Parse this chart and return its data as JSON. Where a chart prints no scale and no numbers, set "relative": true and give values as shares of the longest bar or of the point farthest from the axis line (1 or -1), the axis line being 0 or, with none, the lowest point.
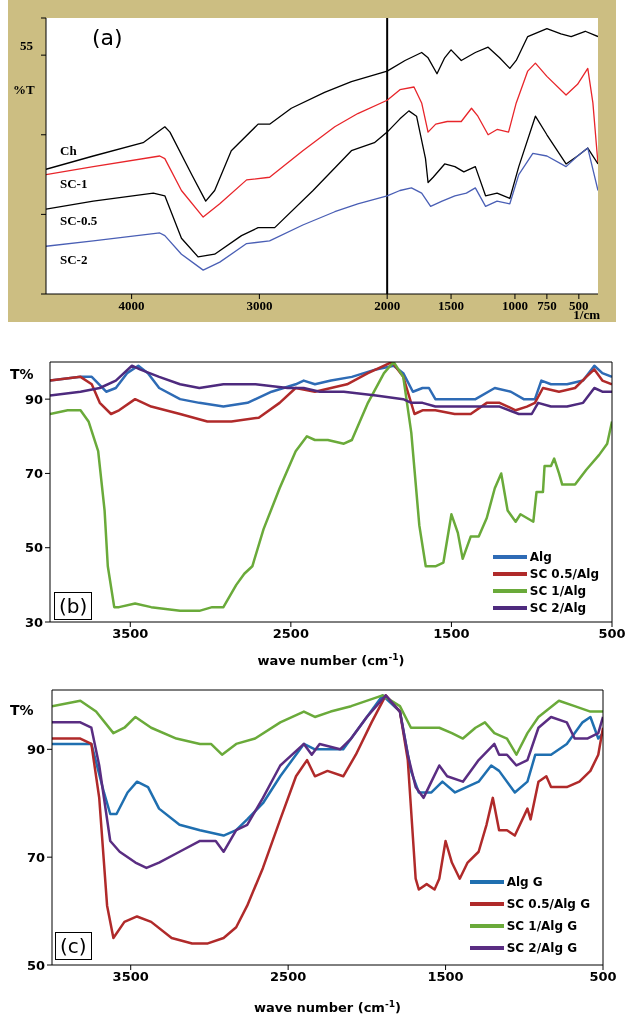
{
  "chart_data": [
    {
      "type": "line",
      "relative": true,
      "ylabel": "%T",
      "xlabel": "1/cm",
      "annotations": [
        "(a)",
        "55"
      ],
      "xlim": [
        4670,
        350
      ],
      "xticks": [
        4000,
        3000,
        2000,
        1500,
        1000,
        750,
        500
      ],
      "legend": "left",
      "grid": false,
      "ref_lines": [
        {
          "axis": "x",
          "value": 2000,
          "color": "#000000"
        }
      ],
      "series": [
        {
          "name": "Ch",
          "color": "#000000",
          "x": [
            4670,
            4300,
            3910,
            3740,
            3700,
            3530,
            3420,
            3350,
            3220,
            3010,
            2920,
            2750,
            2490,
            2280,
            2000,
            1860,
            1730,
            1680,
            1610,
            1550,
            1500,
            1420,
            1310,
            1210,
            1120,
            1040,
            990,
            900,
            750,
            640,
            560,
            450,
            350
          ],
          "values": [
            0.47,
            0.52,
            0.57,
            0.63,
            0.61,
            0.45,
            0.35,
            0.39,
            0.54,
            0.64,
            0.64,
            0.7,
            0.76,
            0.8,
            0.84,
            0.88,
            0.91,
            0.89,
            0.83,
            0.89,
            0.92,
            0.88,
            0.91,
            0.93,
            0.89,
            0.85,
            0.88,
            0.97,
            1,
            0.98,
            0.97,
            0.99,
            0.97
          ]
        },
        {
          "name": "SC-1",
          "color": "#e8252a",
          "x": [
            4670,
            4300,
            3780,
            3740,
            3610,
            3440,
            3310,
            3100,
            2920,
            2660,
            2410,
            2230,
            2000,
            1900,
            1790,
            1730,
            1680,
            1620,
            1530,
            1420,
            1340,
            1290,
            1210,
            1140,
            1050,
            990,
            900,
            840,
            750,
            600,
            510,
            430,
            390,
            350
          ],
          "values": [
            0.45,
            0.48,
            0.52,
            0.51,
            0.39,
            0.29,
            0.34,
            0.43,
            0.44,
            0.54,
            0.63,
            0.68,
            0.73,
            0.77,
            0.78,
            0.72,
            0.61,
            0.64,
            0.65,
            0.65,
            0.7,
            0.67,
            0.6,
            0.62,
            0.61,
            0.72,
            0.84,
            0.87,
            0.82,
            0.75,
            0.79,
            0.85,
            0.72,
            0.49
          ]
        },
        {
          "name": "SC-0.5",
          "color": "#000000",
          "x": [
            4670,
            4300,
            3830,
            3740,
            3610,
            3480,
            3350,
            3140,
            3010,
            2880,
            2580,
            2280,
            2100,
            2000,
            1900,
            1830,
            1770,
            1700,
            1680,
            1640,
            1550,
            1470,
            1400,
            1310,
            1230,
            1140,
            1040,
            970,
            840,
            750,
            600,
            510,
            430,
            350
          ],
          "values": [
            0.32,
            0.35,
            0.38,
            0.37,
            0.21,
            0.14,
            0.15,
            0.22,
            0.25,
            0.25,
            0.39,
            0.54,
            0.57,
            0.61,
            0.66,
            0.69,
            0.67,
            0.51,
            0.42,
            0.44,
            0.49,
            0.48,
            0.46,
            0.48,
            0.37,
            0.38,
            0.36,
            0.48,
            0.67,
            0.6,
            0.49,
            0.52,
            0.55,
            0.49
          ]
        },
        {
          "name": "SC-2",
          "color": "#4a5fb5",
          "x": [
            4670,
            4300,
            3780,
            3740,
            3610,
            3440,
            3310,
            3100,
            2920,
            2660,
            2410,
            2230,
            2000,
            1900,
            1810,
            1730,
            1660,
            1570,
            1470,
            1380,
            1310,
            1230,
            1140,
            1040,
            970,
            860,
            750,
            600,
            510,
            430,
            350
          ],
          "values": [
            0.18,
            0.2,
            0.23,
            0.22,
            0.15,
            0.09,
            0.12,
            0.19,
            0.2,
            0.26,
            0.31,
            0.34,
            0.37,
            0.39,
            0.4,
            0.38,
            0.33,
            0.35,
            0.37,
            0.38,
            0.4,
            0.33,
            0.35,
            0.34,
            0.45,
            0.53,
            0.52,
            0.48,
            0.52,
            0.55,
            0.39
          ]
        }
      ]
    },
    {
      "type": "line",
      "ylabel": "T%",
      "xlabel": "wave number (cm$^{-1}$)",
      "annotations": [
        "(b)"
      ],
      "xlim": [
        4000,
        500
      ],
      "xticks": [
        3500,
        2500,
        1500,
        500
      ],
      "ylim": [
        30,
        100
      ],
      "yticks": [
        30,
        50,
        70,
        90
      ],
      "legend": "bottom right",
      "grid": false,
      "series": [
        {
          "name": "Alg",
          "color": "#2e6bb5",
          "x": [
            4000,
            3810,
            3740,
            3650,
            3590,
            3520,
            3450,
            3390,
            3320,
            3190,
            3070,
            2920,
            2770,
            2620,
            2470,
            2420,
            2350,
            2250,
            2120,
            1970,
            1860,
            1800,
            1740,
            1680,
            1640,
            1600,
            1450,
            1350,
            1230,
            1130,
            1050,
            980,
            940,
            880,
            780,
            680,
            610,
            560,
            500
          ],
          "values": [
            95,
            96,
            96,
            92,
            93,
            97,
            99,
            97,
            93,
            90,
            89,
            88,
            89,
            92,
            94,
            95,
            94,
            95,
            96,
            98,
            99,
            97,
            92,
            93,
            93,
            90,
            90,
            90,
            93,
            92,
            90,
            90,
            95,
            94,
            94,
            95,
            99,
            97,
            96
          ]
        },
        {
          "name": "SC 0.5/Alg",
          "color": "#b02a2a",
          "x": [
            4000,
            3810,
            3740,
            3690,
            3620,
            3570,
            3470,
            3370,
            3190,
            3020,
            2870,
            2700,
            2570,
            2470,
            2350,
            2250,
            2150,
            2020,
            1870,
            1800,
            1730,
            1680,
            1600,
            1480,
            1380,
            1280,
            1200,
            1100,
            1030,
            980,
            930,
            830,
            730,
            660,
            610,
            560,
            500
          ],
          "values": [
            95,
            96,
            94,
            89,
            86,
            87,
            90,
            88,
            86,
            84,
            84,
            85,
            89,
            93,
            92,
            93,
            94,
            97,
            100,
            96,
            86,
            87,
            87,
            86,
            86,
            89,
            89,
            87,
            88,
            89,
            93,
            92,
            93,
            96,
            98,
            95,
            94
          ]
        },
        {
          "name": "SC 1/Alg",
          "color": "#6aaa3a",
          "x": [
            4000,
            3890,
            3810,
            3760,
            3700,
            3660,
            3640,
            3600,
            3570,
            3470,
            3370,
            3190,
            3070,
            2990,
            2920,
            2840,
            2790,
            2740,
            2670,
            2570,
            2470,
            2400,
            2350,
            2270,
            2170,
            2120,
            2020,
            1920,
            1860,
            1800,
            1750,
            1700,
            1660,
            1600,
            1550,
            1500,
            1460,
            1430,
            1380,
            1330,
            1280,
            1230,
            1190,
            1150,
            1100,
            1070,
            990,
            970,
            930,
            920,
            880,
            860,
            830,
            810,
            730,
            660,
            580,
            530,
            500
          ],
          "values": [
            86,
            87,
            87,
            84,
            76,
            60,
            45,
            34,
            34,
            35,
            34,
            33,
            33,
            34,
            34,
            40,
            43,
            45,
            55,
            66,
            76,
            80,
            79,
            79,
            78,
            79,
            89,
            97,
            100,
            96,
            81,
            56,
            45,
            45,
            46,
            59,
            54,
            47,
            53,
            53,
            58,
            66,
            70,
            60,
            57,
            59,
            57,
            65,
            65,
            72,
            72,
            74,
            70,
            67,
            67,
            71,
            75,
            78,
            84
          ]
        },
        {
          "name": "SC 2/Alg",
          "color": "#4e2a7e",
          "x": [
            4000,
            3810,
            3690,
            3590,
            3490,
            3440,
            3320,
            3190,
            3070,
            2920,
            2720,
            2520,
            2420,
            2320,
            2170,
            1970,
            1800,
            1750,
            1680,
            1600,
            1480,
            1330,
            1200,
            1080,
            1000,
            960,
            880,
            780,
            680,
            610,
            560,
            500
          ],
          "values": [
            91,
            92,
            93,
            95,
            99,
            98,
            96,
            94,
            93,
            94,
            94,
            93,
            93,
            92,
            92,
            91,
            90,
            89,
            89,
            88,
            88,
            88,
            88,
            86,
            86,
            89,
            88,
            88,
            89,
            93,
            92,
            92
          ]
        }
      ]
    },
    {
      "type": "line",
      "ylabel": "T%",
      "xlabel": "wave number (cm$^{-1}$)",
      "annotations": [
        "(c)"
      ],
      "xlim": [
        4000,
        500
      ],
      "xticks": [
        3500,
        2500,
        1500,
        500
      ],
      "ylim": [
        50,
        101
      ],
      "yticks": [
        50,
        70,
        90
      ],
      "legend": "bottom right",
      "grid": false,
      "series": [
        {
          "name": "Alg G",
          "color": "#1f6fb0",
          "x": [
            4000,
            3900,
            3750,
            3670,
            3630,
            3590,
            3520,
            3460,
            3390,
            3320,
            3190,
            3060,
            2910,
            2830,
            2760,
            2660,
            2550,
            2400,
            2330,
            2230,
            2150,
            2050,
            1900,
            1790,
            1720,
            1670,
            1590,
            1520,
            1440,
            1290,
            1210,
            1160,
            1060,
            980,
            930,
            830,
            730,
            630,
            580,
            530,
            500
          ],
          "values": [
            91,
            91,
            91,
            82,
            78,
            78,
            82,
            84,
            83,
            79,
            76,
            75,
            74,
            75,
            77,
            80,
            85,
            91,
            90,
            90,
            90,
            94,
            100,
            97,
            86,
            82,
            82,
            84,
            82,
            84,
            87,
            86,
            82,
            84,
            89,
            89,
            91,
            95,
            96,
            92,
            93
          ]
        },
        {
          "name": "SC 0.5/Alg G",
          "color": "#b02a2a",
          "x": [
            4000,
            3820,
            3750,
            3700,
            3650,
            3610,
            3540,
            3460,
            3370,
            3240,
            3110,
            3010,
            2910,
            2830,
            2760,
            2660,
            2550,
            2450,
            2380,
            2330,
            2250,
            2150,
            2070,
            1970,
            1880,
            1790,
            1740,
            1690,
            1670,
            1620,
            1570,
            1540,
            1500,
            1460,
            1410,
            1360,
            1290,
            1240,
            1200,
            1160,
            1110,
            1060,
            980,
            960,
            910,
            860,
            830,
            730,
            650,
            580,
            530,
            500
          ],
          "values": [
            92,
            92,
            91,
            81,
            61,
            55,
            58,
            59,
            58,
            55,
            54,
            54,
            55,
            57,
            61,
            68,
            77,
            85,
            88,
            85,
            86,
            85,
            89,
            95,
            100,
            97,
            88,
            66,
            64,
            65,
            64,
            66,
            73,
            69,
            66,
            69,
            71,
            76,
            81,
            75,
            75,
            74,
            79,
            77,
            84,
            85,
            83,
            83,
            84,
            86,
            89,
            94
          ]
        },
        {
          "name": "SC 1/Alg G",
          "color": "#6aaa3a",
          "x": [
            4000,
            3820,
            3720,
            3610,
            3540,
            3470,
            3370,
            3210,
            3060,
            2990,
            2920,
            2830,
            2710,
            2550,
            2400,
            2330,
            2230,
            2100,
            1900,
            1790,
            1720,
            1640,
            1540,
            1460,
            1390,
            1310,
            1250,
            1190,
            1110,
            1050,
            980,
            910,
            780,
            680,
            580,
            500
          ],
          "values": [
            98,
            99,
            97,
            93,
            94,
            96,
            94,
            92,
            91,
            91,
            89,
            91,
            92,
            95,
            97,
            96,
            97,
            98,
            100,
            98,
            94,
            94,
            94,
            93,
            92,
            94,
            95,
            93,
            92,
            89,
            93,
            96,
            99,
            98,
            97,
            97
          ]
        },
        {
          "name": "SC 2/Alg G",
          "color": "#5a2d82",
          "x": [
            4000,
            3820,
            3750,
            3700,
            3630,
            3570,
            3470,
            3400,
            3320,
            3190,
            3060,
            2960,
            2910,
            2830,
            2760,
            2660,
            2550,
            2400,
            2350,
            2300,
            2170,
            2100,
            2000,
            1880,
            1790,
            1740,
            1690,
            1640,
            1590,
            1540,
            1490,
            1390,
            1290,
            1190,
            1160,
            1110,
            1050,
            980,
            910,
            830,
            730,
            680,
            600,
            530,
            500
          ],
          "values": [
            95,
            95,
            94,
            87,
            73,
            71,
            69,
            68,
            69,
            71,
            73,
            73,
            71,
            75,
            76,
            81,
            87,
            91,
            89,
            91,
            90,
            92,
            96,
            100,
            97,
            89,
            83,
            81,
            84,
            87,
            85,
            84,
            88,
            91,
            89,
            89,
            87,
            88,
            94,
            96,
            95,
            92,
            92,
            93,
            96
          ]
        }
      ]
    }
  ]
}
